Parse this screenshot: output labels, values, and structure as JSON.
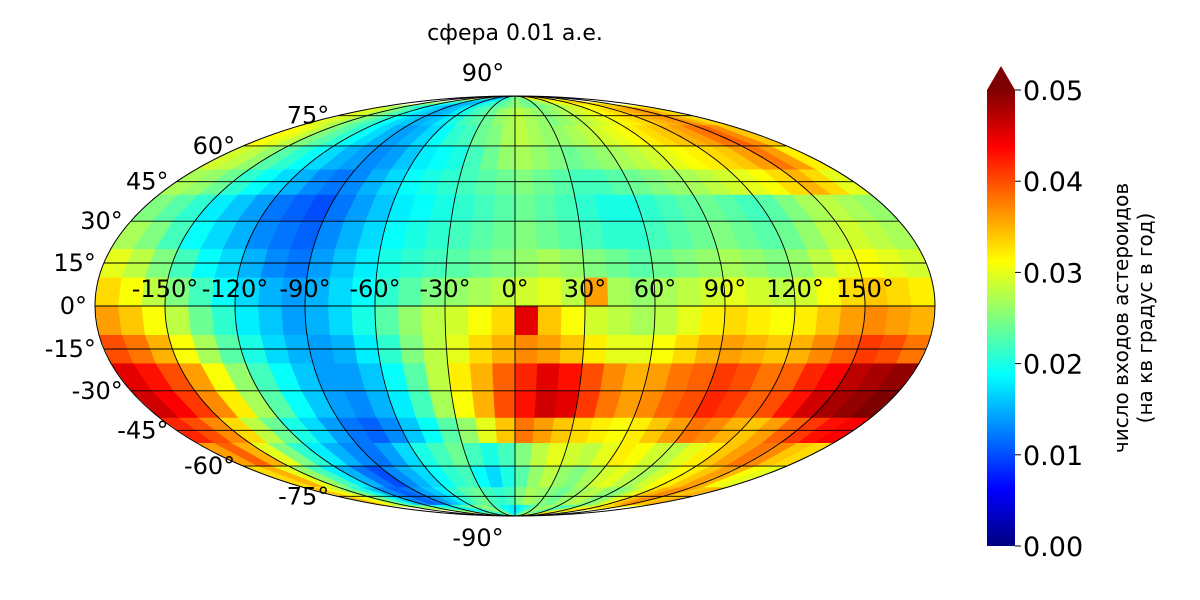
{
  "chart_data": {
    "type": "heatmap",
    "projection": "mollweide",
    "title": "сфера 0.01 а.е.",
    "lon_tick_labels": [
      "-150°",
      "-120°",
      "-90°",
      "-60°",
      "-30°",
      "0°",
      "30°",
      "60°",
      "90°",
      "120°",
      "150°"
    ],
    "lat_tick_labels": [
      "90°",
      "75°",
      "60°",
      "45°",
      "30°",
      "15°",
      "0°",
      "-15°",
      "-30°",
      "-45°",
      "-60°",
      "-75°",
      "-90°"
    ],
    "lon_bins": [
      -180,
      180,
      10
    ],
    "lat_bins": [
      -90,
      90,
      10
    ],
    "grid": true,
    "colormap": "jet",
    "colorbar": {
      "range": [
        0.0,
        0.05
      ],
      "extend": "max",
      "ticks": [
        "0.00",
        "0.01",
        "0.02",
        "0.03",
        "0.04",
        "0.05"
      ],
      "label_line1": "число входов астероидов",
      "label_line2": "(на кв градус в год)"
    },
    "values": [
      [
        0.03,
        0.028,
        0.026,
        0.025,
        0.024,
        0.022,
        0.02,
        0.019,
        0.018,
        0.021,
        0.024,
        0.022,
        0.025,
        0.026,
        0.023,
        0.021,
        0.019,
        0.018,
        0.018,
        0.02,
        0.022,
        0.024,
        0.026,
        0.027,
        0.025,
        0.023,
        0.022,
        0.024,
        0.026,
        0.028,
        0.03,
        0.031,
        0.033,
        0.035,
        0.032,
        0.031
      ],
      [
        0.034,
        0.031,
        0.028,
        0.024,
        0.02,
        0.016,
        0.013,
        0.011,
        0.012,
        0.014,
        0.016,
        0.018,
        0.021,
        0.023,
        0.024,
        0.022,
        0.021,
        0.022,
        0.025,
        0.027,
        0.026,
        0.025,
        0.024,
        0.026,
        0.027,
        0.028,
        0.026,
        0.025,
        0.027,
        0.03,
        0.033,
        0.035,
        0.037,
        0.036,
        0.034,
        0.035
      ],
      [
        0.033,
        0.035,
        0.03,
        0.026,
        0.022,
        0.018,
        0.015,
        0.012,
        0.01,
        0.013,
        0.015,
        0.017,
        0.019,
        0.021,
        0.022,
        0.019,
        0.017,
        0.02,
        0.023,
        0.026,
        0.028,
        0.026,
        0.025,
        0.027,
        0.029,
        0.03,
        0.028,
        0.027,
        0.029,
        0.031,
        0.032,
        0.034,
        0.036,
        0.035,
        0.031,
        0.03
      ],
      [
        0.036,
        0.039,
        0.035,
        0.03,
        0.025,
        0.021,
        0.018,
        0.015,
        0.013,
        0.012,
        0.014,
        0.017,
        0.02,
        0.022,
        0.024,
        0.022,
        0.02,
        0.022,
        0.025,
        0.028,
        0.03,
        0.029,
        0.028,
        0.03,
        0.032,
        0.031,
        0.029,
        0.028,
        0.03,
        0.032,
        0.034,
        0.036,
        0.038,
        0.037,
        0.034,
        0.033
      ],
      [
        0.042,
        0.04,
        0.037,
        0.033,
        0.028,
        0.024,
        0.02,
        0.017,
        0.014,
        0.012,
        0.011,
        0.013,
        0.016,
        0.019,
        0.023,
        0.026,
        0.03,
        0.034,
        0.038,
        0.036,
        0.034,
        0.033,
        0.032,
        0.031,
        0.032,
        0.034,
        0.036,
        0.038,
        0.037,
        0.035,
        0.034,
        0.036,
        0.039,
        0.041,
        0.043,
        0.044
      ],
      [
        0.046,
        0.044,
        0.041,
        0.037,
        0.032,
        0.027,
        0.023,
        0.019,
        0.016,
        0.014,
        0.013,
        0.015,
        0.018,
        0.022,
        0.027,
        0.031,
        0.035,
        0.04,
        0.043,
        0.046,
        0.045,
        0.041,
        0.038,
        0.036,
        0.037,
        0.039,
        0.04,
        0.042,
        0.041,
        0.039,
        0.04,
        0.043,
        0.046,
        0.048,
        0.049,
        0.05
      ],
      [
        0.045,
        0.043,
        0.04,
        0.036,
        0.031,
        0.026,
        0.022,
        0.019,
        0.016,
        0.014,
        0.014,
        0.016,
        0.019,
        0.023,
        0.028,
        0.032,
        0.035,
        0.039,
        0.042,
        0.045,
        0.043,
        0.04,
        0.037,
        0.035,
        0.036,
        0.038,
        0.039,
        0.041,
        0.04,
        0.038,
        0.039,
        0.042,
        0.044,
        0.047,
        0.048,
        0.049
      ],
      [
        0.04,
        0.038,
        0.035,
        0.031,
        0.027,
        0.023,
        0.02,
        0.017,
        0.015,
        0.014,
        0.015,
        0.018,
        0.021,
        0.025,
        0.028,
        0.03,
        0.033,
        0.035,
        0.037,
        0.036,
        0.034,
        0.032,
        0.03,
        0.03,
        0.031,
        0.033,
        0.035,
        0.036,
        0.035,
        0.034,
        0.035,
        0.037,
        0.039,
        0.041,
        0.04,
        0.038
      ],
      [
        0.036,
        0.034,
        0.031,
        0.028,
        0.024,
        0.021,
        0.018,
        0.016,
        0.014,
        0.015,
        0.017,
        0.02,
        0.023,
        0.026,
        0.028,
        0.029,
        0.031,
        0.033,
        0.045,
        0.034,
        0.031,
        0.029,
        0.028,
        0.027,
        0.028,
        0.03,
        0.032,
        0.033,
        0.032,
        0.031,
        0.032,
        0.034,
        0.036,
        0.037,
        0.036,
        0.035
      ],
      [
        0.033,
        0.031,
        0.028,
        0.025,
        0.022,
        0.019,
        0.017,
        0.015,
        0.014,
        0.015,
        0.017,
        0.019,
        0.021,
        0.023,
        0.025,
        0.026,
        0.027,
        0.028,
        0.029,
        0.03,
        0.028,
        0.036,
        0.027,
        0.026,
        0.027,
        0.028,
        0.029,
        0.03,
        0.029,
        0.028,
        0.029,
        0.031,
        0.033,
        0.034,
        0.033,
        0.032
      ],
      [
        0.03,
        0.028,
        0.025,
        0.022,
        0.019,
        0.017,
        0.015,
        0.013,
        0.012,
        0.014,
        0.016,
        0.018,
        0.02,
        0.021,
        0.022,
        0.023,
        0.024,
        0.025,
        0.026,
        0.027,
        0.026,
        0.025,
        0.024,
        0.023,
        0.024,
        0.025,
        0.026,
        0.027,
        0.026,
        0.025,
        0.026,
        0.028,
        0.03,
        0.031,
        0.03,
        0.029
      ],
      [
        0.027,
        0.025,
        0.022,
        0.019,
        0.017,
        0.015,
        0.013,
        0.012,
        0.011,
        0.013,
        0.015,
        0.017,
        0.019,
        0.02,
        0.021,
        0.022,
        0.023,
        0.024,
        0.025,
        0.024,
        0.023,
        0.022,
        0.021,
        0.021,
        0.022,
        0.023,
        0.024,
        0.025,
        0.024,
        0.023,
        0.024,
        0.026,
        0.028,
        0.029,
        0.028,
        0.027
      ],
      [
        0.025,
        0.023,
        0.021,
        0.018,
        0.016,
        0.014,
        0.012,
        0.011,
        0.01,
        0.012,
        0.014,
        0.016,
        0.018,
        0.019,
        0.02,
        0.021,
        0.022,
        0.023,
        0.024,
        0.023,
        0.022,
        0.021,
        0.02,
        0.02,
        0.021,
        0.022,
        0.023,
        0.024,
        0.023,
        0.022,
        0.023,
        0.025,
        0.027,
        0.028,
        0.027,
        0.026
      ],
      [
        0.027,
        0.026,
        0.024,
        0.021,
        0.019,
        0.017,
        0.015,
        0.013,
        0.012,
        0.013,
        0.015,
        0.017,
        0.019,
        0.02,
        0.021,
        0.022,
        0.023,
        0.024,
        0.025,
        0.024,
        0.023,
        0.022,
        0.022,
        0.023,
        0.024,
        0.025,
        0.026,
        0.027,
        0.028,
        0.029,
        0.03,
        0.031,
        0.033,
        0.035,
        0.033,
        0.03
      ],
      [
        0.029,
        0.028,
        0.026,
        0.023,
        0.021,
        0.019,
        0.017,
        0.015,
        0.014,
        0.013,
        0.014,
        0.016,
        0.018,
        0.019,
        0.02,
        0.022,
        0.024,
        0.026,
        0.027,
        0.026,
        0.025,
        0.024,
        0.025,
        0.026,
        0.027,
        0.028,
        0.029,
        0.03,
        0.031,
        0.032,
        0.033,
        0.034,
        0.036,
        0.038,
        0.036,
        0.032
      ],
      [
        0.031,
        0.03,
        0.028,
        0.025,
        0.023,
        0.021,
        0.019,
        0.017,
        0.015,
        0.014,
        0.015,
        0.017,
        0.019,
        0.021,
        0.022,
        0.024,
        0.025,
        0.027,
        0.028,
        0.027,
        0.026,
        0.026,
        0.027,
        0.028,
        0.029,
        0.03,
        0.031,
        0.032,
        0.033,
        0.034,
        0.035,
        0.036,
        0.038,
        0.039,
        0.037,
        0.034
      ],
      [
        0.03,
        0.029,
        0.027,
        0.025,
        0.023,
        0.021,
        0.019,
        0.017,
        0.016,
        0.015,
        0.016,
        0.018,
        0.02,
        0.022,
        0.023,
        0.024,
        0.026,
        0.027,
        0.028,
        0.027,
        0.026,
        0.025,
        0.026,
        0.027,
        0.028,
        0.029,
        0.03,
        0.031,
        0.032,
        0.033,
        0.034,
        0.035,
        0.036,
        0.037,
        0.035,
        0.033
      ],
      [
        0.028,
        0.027,
        0.025,
        0.023,
        0.021,
        0.019,
        0.018,
        0.016,
        0.015,
        0.015,
        0.016,
        0.018,
        0.02,
        0.021,
        0.022,
        0.023,
        0.024,
        0.025,
        0.026,
        0.025,
        0.024,
        0.024,
        0.025,
        0.026,
        0.027,
        0.028,
        0.029,
        0.03,
        0.031,
        0.031,
        0.032,
        0.033,
        0.034,
        0.035,
        0.033,
        0.031
      ]
    ]
  }
}
